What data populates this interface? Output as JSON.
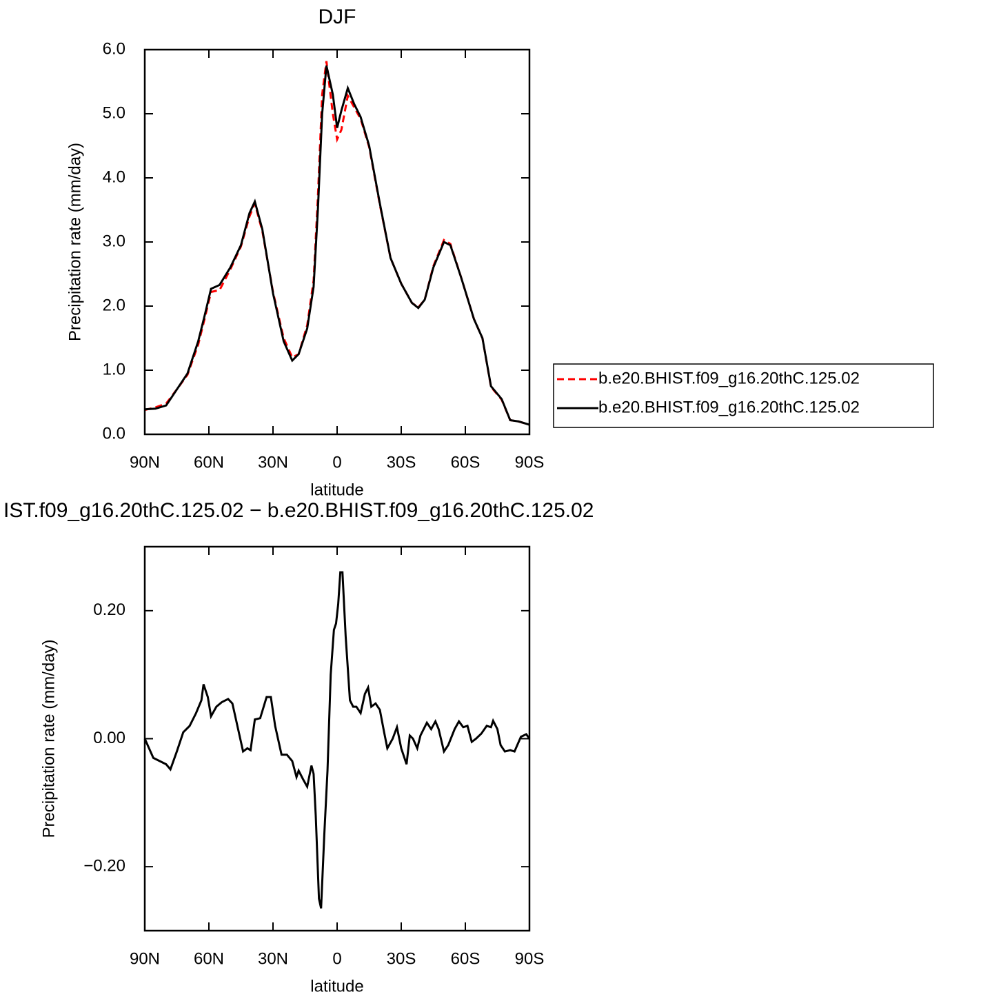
{
  "chart_data": [
    {
      "type": "line",
      "title": "DJF",
      "xlabel": "latitude",
      "ylabel": "Precipitation rate (mm/day)",
      "x": [
        90,
        85,
        80,
        75,
        70,
        65,
        62,
        59,
        55,
        50,
        45,
        41,
        38.5,
        35,
        30,
        25,
        21,
        18,
        14,
        11,
        9,
        7,
        5,
        2,
        0,
        -2,
        -5,
        -8,
        -11,
        -15,
        -20,
        -25,
        -30,
        -35,
        -38,
        -41,
        -45,
        -50,
        -53,
        -58,
        -64,
        -68,
        -72,
        -77,
        -81,
        -85,
        -90
      ],
      "series": [
        {
          "name": "b.e20.BHIST.f09_g16.20thC.125.02",
          "color": "#ff0000",
          "line_style": "dashed",
          "values": [
            0.38,
            0.42,
            0.48,
            0.7,
            0.93,
            1.4,
            1.8,
            2.22,
            2.25,
            2.57,
            2.93,
            3.4,
            3.6,
            3.17,
            2.22,
            1.5,
            1.2,
            1.25,
            1.7,
            2.4,
            3.7,
            5.3,
            5.82,
            5.0,
            4.6,
            4.75,
            5.28,
            5.1,
            4.92,
            4.48,
            3.58,
            2.75,
            2.35,
            2.05,
            1.98,
            2.1,
            2.62,
            3.03,
            2.97,
            2.45,
            1.8,
            1.5,
            0.74,
            0.54,
            0.22,
            0.2,
            0.15
          ]
        },
        {
          "name": "b.e20.BHIST.f09_g16.20thC.125.02",
          "color": "#000000",
          "line_style": "solid",
          "values": [
            0.39,
            0.4,
            0.45,
            0.7,
            0.95,
            1.45,
            1.85,
            2.27,
            2.33,
            2.6,
            2.95,
            3.45,
            3.63,
            3.2,
            2.2,
            1.45,
            1.15,
            1.25,
            1.65,
            2.3,
            3.5,
            5.0,
            5.75,
            5.3,
            4.78,
            5.05,
            5.4,
            5.15,
            4.95,
            4.5,
            3.6,
            2.75,
            2.35,
            2.05,
            1.97,
            2.1,
            2.6,
            3.0,
            2.95,
            2.45,
            1.8,
            1.5,
            0.75,
            0.55,
            0.22,
            0.2,
            0.15
          ]
        }
      ],
      "xlim": [
        90,
        -90
      ],
      "xticks": [
        {
          "value": 90,
          "label": "90N"
        },
        {
          "value": 60,
          "label": "60N"
        },
        {
          "value": 30,
          "label": "30N"
        },
        0,
        {
          "value": -30,
          "label": "30S"
        },
        {
          "value": -60,
          "label": "60S"
        },
        {
          "value": -90,
          "label": "90S"
        }
      ],
      "ylim": [
        0,
        6
      ],
      "yticks": [
        {
          "value": 0,
          "label": "0.0"
        },
        {
          "value": 1,
          "label": "1.0"
        },
        {
          "value": 2,
          "label": "2.0"
        },
        {
          "value": 3,
          "label": "3.0"
        },
        {
          "value": 4,
          "label": "4.0"
        },
        {
          "value": 5,
          "label": "5.0"
        },
        {
          "value": 6,
          "label": "6.0"
        }
      ],
      "legend": "outside-right",
      "grid": false
    },
    {
      "type": "line",
      "title": "IST.f09_g16.20thC.125.02 − b.e20.BHIST.f09_g16.20thC.125.02",
      "xlabel": "latitude",
      "ylabel": "Precipitation rate (mm/day)",
      "x": [
        90,
        86,
        80,
        78,
        75,
        72,
        69,
        66,
        63.5,
        62.5,
        60.5,
        59,
        56.5,
        54,
        51,
        49,
        46,
        44,
        42,
        40.5,
        38.5,
        36,
        33,
        31,
        29,
        26,
        23.5,
        21,
        19,
        18,
        16,
        14,
        12,
        11,
        10,
        8.5,
        7.5,
        6,
        4.5,
        3,
        1.5,
        0.5,
        -0.5,
        -1.5,
        -2.5,
        -4,
        -6,
        -7.5,
        -9,
        -11,
        -13,
        -14.5,
        -16,
        -18,
        -20,
        -22,
        -23.5,
        -26,
        -28,
        -30,
        -32.5,
        -34,
        -35.5,
        -37.5,
        -39,
        -42,
        -44,
        -46,
        -47.5,
        -50,
        -52,
        -55,
        -57,
        -59,
        -61,
        -63,
        -65,
        -67.5,
        -70,
        -72,
        -73,
        -75,
        -76.5,
        -78.5,
        -81,
        -83,
        -86,
        -88.5,
        -90
      ],
      "series": [
        {
          "color": "#000000",
          "line_style": "solid",
          "values": [
            0.0,
            -0.03,
            -0.04,
            -0.048,
            -0.02,
            0.01,
            0.02,
            0.04,
            0.06,
            0.085,
            0.065,
            0.035,
            0.05,
            0.057,
            0.062,
            0.055,
            0.01,
            -0.02,
            -0.015,
            -0.018,
            0.03,
            0.032,
            0.065,
            0.065,
            0.02,
            -0.025,
            -0.025,
            -0.035,
            -0.06,
            -0.05,
            -0.063,
            -0.075,
            -0.042,
            -0.055,
            -0.12,
            -0.25,
            -0.265,
            -0.15,
            -0.05,
            0.1,
            0.17,
            0.18,
            0.21,
            0.26,
            0.26,
            0.16,
            0.06,
            0.05,
            0.05,
            0.04,
            0.07,
            0.08,
            0.05,
            0.055,
            0.045,
            0.01,
            -0.015,
            0.0,
            0.018,
            -0.015,
            -0.04,
            0.005,
            0.0,
            -0.015,
            0.005,
            0.025,
            0.015,
            0.027,
            0.015,
            -0.02,
            -0.01,
            0.015,
            0.027,
            0.018,
            0.02,
            -0.005,
            0.0,
            0.008,
            0.02,
            0.018,
            0.028,
            0.015,
            -0.01,
            -0.02,
            -0.018,
            -0.02,
            0.003,
            0.007,
            0.0
          ]
        }
      ],
      "xlim": [
        90,
        -90
      ],
      "xticks": [
        {
          "value": 90,
          "label": "90N"
        },
        {
          "value": 60,
          "label": "60N"
        },
        {
          "value": 30,
          "label": "30N"
        },
        0,
        {
          "value": -30,
          "label": "30S"
        },
        {
          "value": -60,
          "label": "60S"
        },
        {
          "value": -90,
          "label": "90S"
        }
      ],
      "ylim": [
        -0.3,
        0.3
      ],
      "yticks": [
        {
          "value": -0.2,
          "label": "−0.20"
        },
        {
          "value": 0,
          "label": "0.00"
        },
        {
          "value": 0.2,
          "label": "0.20"
        }
      ],
      "grid": false
    }
  ]
}
